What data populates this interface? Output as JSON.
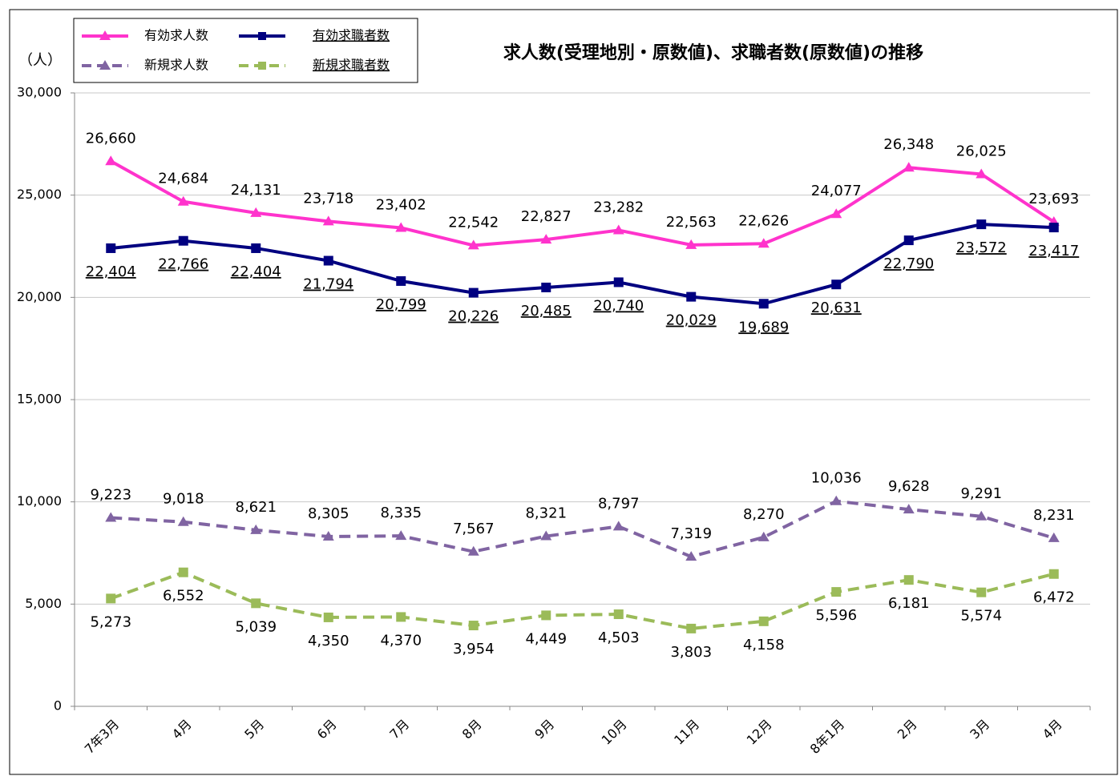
{
  "chart_data": {
    "type": "line",
    "title": "求人数(受理地別・原数値)、求職者数(原数値)の推移",
    "y_label": "（人）",
    "categories": [
      "7年3月",
      "4月",
      "5月",
      "6月",
      "7月",
      "8月",
      "9月",
      "10月",
      "11月",
      "12月",
      "8年1月",
      "2月",
      "3月",
      "4月"
    ],
    "ylim": [
      0,
      30000
    ],
    "yticks": [
      0,
      {
        "value": 5000,
        "label": "5,000"
      },
      {
        "value": 10000,
        "label": "10,000"
      },
      {
        "value": 15000,
        "label": "15,000"
      },
      {
        "value": 20000,
        "label": "20,000"
      },
      {
        "value": 25000,
        "label": "25,000"
      },
      {
        "value": 30000,
        "label": "30,000"
      }
    ],
    "grid": true,
    "series": [
      {
        "name": "有効求人数",
        "color": "#ff33cc",
        "marker": "triangle",
        "dash": false,
        "label_side": "above",
        "values": [
          26660,
          24684,
          24131,
          23718,
          23402,
          22542,
          22827,
          23282,
          22563,
          22626,
          24077,
          26348,
          26025,
          23693
        ],
        "value_labels": [
          "26,660",
          "24,684",
          "24,131",
          "23,718",
          "23,402",
          "22,542",
          "22,827",
          "23,282",
          "22,563",
          "22,626",
          "24,077",
          "26,348",
          "26,025",
          "23,693"
        ]
      },
      {
        "name": "有効求職者数",
        "color": "#000080",
        "marker": "square",
        "dash": false,
        "label_side": "below",
        "underline": "all",
        "values": [
          22404,
          22766,
          22404,
          21794,
          20799,
          20226,
          20485,
          20740,
          20029,
          19689,
          20631,
          22790,
          23572,
          23417
        ],
        "value_labels": [
          "22,404",
          "22,766",
          "22,404",
          "21,794",
          "20,799",
          "20,226",
          "20,485",
          "20,740",
          "20,029",
          "19,689",
          "20,631",
          "22,790",
          "23,572",
          "23,417"
        ]
      },
      {
        "name": "新規求人数",
        "color": "#8064a2",
        "marker": "triangle",
        "dash": true,
        "label_side": "above",
        "values": [
          9223,
          9018,
          8621,
          8305,
          8335,
          7567,
          8321,
          8797,
          7319,
          8270,
          10036,
          9628,
          9291,
          8231
        ],
        "value_labels": [
          "9,223",
          "9,018",
          "8,621",
          "8,305",
          "8,335",
          "7,567",
          "8,321",
          "8,797",
          "7,319",
          "8,270",
          "10,036",
          "9,628",
          "9,291",
          "8,231"
        ]
      },
      {
        "name": "新規求職者数",
        "color": "#9bbb59",
        "marker": "square",
        "dash": true,
        "label_side": "below",
        "underline": "legend",
        "values": [
          5273,
          6552,
          5039,
          4350,
          4370,
          3954,
          4449,
          4503,
          3803,
          4158,
          5596,
          6181,
          5574,
          6472
        ],
        "value_labels": [
          "5,273",
          "6,552",
          "5,039",
          "4,350",
          "4,370",
          "3,954",
          "4,449",
          "4,503",
          "3,803",
          "4,158",
          "5,596",
          "6,181",
          "5,574",
          "6,472"
        ]
      }
    ]
  }
}
